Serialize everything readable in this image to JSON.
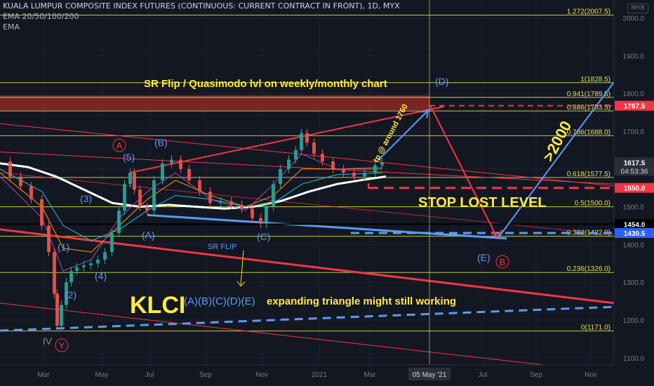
{
  "header": {
    "title": "KUALA LUMPUR COMPOSITE INDEX FUTURES (CONTINUOUS: CURRENT CONTRACT IN FRONT), 1D, MYX",
    "ema_label": "EMA 20/50/100/200",
    "ema_label2": "EMA",
    "currency": "MYR"
  },
  "colors": {
    "background": "#131722",
    "fib_line": "#e6e64c",
    "resistance_zone": "#9c2b2b",
    "red_line": "#f23645",
    "blue_line": "#5b9cf6",
    "white_ema": "#ffffff",
    "yellow_text": "#ffeb3b"
  },
  "chart_data": {
    "type": "line",
    "instrument": "KLCI Futures",
    "timeframe": "1D",
    "xlabels": [
      "Mar",
      "May",
      "Jul",
      "Sep",
      "Nov",
      "2021",
      "Mar",
      "05 May '21",
      "Jul",
      "Sep",
      "Nov"
    ],
    "ylim": [
      1100,
      2000
    ],
    "yticks": [
      1100,
      1200,
      1300,
      1400,
      1500,
      1600,
      1700,
      1800,
      1900,
      2000
    ],
    "fib_levels": [
      {
        "ratio": "1.272",
        "value": 2007.5,
        "label": "1.272(2007.5)"
      },
      {
        "ratio": "1",
        "value": 1828.5,
        "label": "1(1828.5)"
      },
      {
        "ratio": "0.941",
        "value": 1789.5,
        "label": "0.941(1789.5)"
      },
      {
        "ratio": "0.886",
        "value": 1753.5,
        "label": "0.886(1753.5)"
      },
      {
        "ratio": "0.786",
        "value": 1688.0,
        "label": "0.786(1688.0)"
      },
      {
        "ratio": "0.618",
        "value": 1577.5,
        "label": "0.618(1577.5)"
      },
      {
        "ratio": "0.5",
        "value": 1500.0,
        "label": "0.5(1500.0)"
      },
      {
        "ratio": "0.382",
        "value": 1422.0,
        "label": "0.382(1422.0)"
      },
      {
        "ratio": "0.236",
        "value": 1326.0,
        "label": "0.236(1326.0)"
      },
      {
        "ratio": "0",
        "value": 1171.0,
        "label": "0(1171.0)"
      }
    ],
    "price_tags": [
      {
        "value": 1767.5,
        "label": "1767.5",
        "color": "#f23645"
      },
      {
        "value": 1617.5,
        "label": "1617.5",
        "sub": "04:53:36",
        "color": "#2a2e39"
      },
      {
        "value": 1550.0,
        "label": "1550.0",
        "color": "#f23645"
      },
      {
        "value": 1454.0,
        "label": "1454.0",
        "color": "#000000"
      },
      {
        "value": 1430.5,
        "label": "1430.5",
        "color": "#2962ff"
      }
    ],
    "annotations": {
      "sr_flip_title": "SR Flip / Quasimodo lvl on weekly/monthly chart",
      "tp_text": "tp @ around 1760",
      "target_text": ">2000",
      "stop_lost": "STOP LOST LEVEL",
      "sr_flip": "SR FLIP",
      "klci": "KLCI",
      "triangle_letters": "(A)(B)(C)(D)(E)",
      "triangle_text": "expanding triangle might still working",
      "waves": {
        "w1": "(1)",
        "w2": "(2)",
        "w3": "(3)",
        "w4": "(4)",
        "w5": "(5)",
        "wA": "(A)",
        "wB": "(B)",
        "wC": "(C)",
        "wD": "(D)",
        "wE": "(E)",
        "circA": "A",
        "circB": "B",
        "circY": "Y",
        "iv": "IV"
      }
    }
  }
}
